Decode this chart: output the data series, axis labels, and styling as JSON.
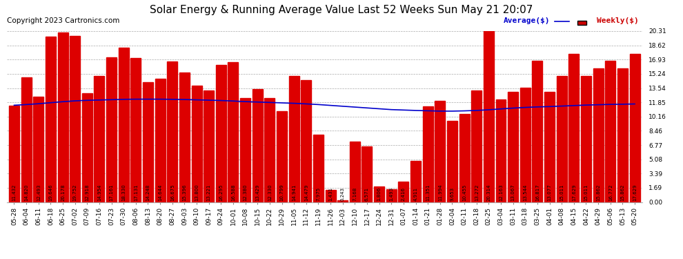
{
  "title": "Solar Energy & Running Average Value Last 52 Weeks Sun May 21 20:07",
  "copyright": "Copyright 2023 Cartronics.com",
  "bar_color": "#dd0000",
  "avg_line_color": "#0000cc",
  "weekly_label_color": "#cc0000",
  "avg_label_color": "#0000cc",
  "background_color": "#ffffff",
  "grid_color": "#aaaaaa",
  "categories": [
    "05-28",
    "06-04",
    "06-11",
    "06-18",
    "06-25",
    "07-02",
    "07-09",
    "07-16",
    "07-23",
    "07-30",
    "08-06",
    "08-13",
    "08-20",
    "08-27",
    "09-03",
    "09-10",
    "09-17",
    "09-24",
    "10-01",
    "10-08",
    "10-15",
    "10-22",
    "10-29",
    "11-05",
    "11-12",
    "11-19",
    "11-26",
    "12-03",
    "12-10",
    "12-17",
    "12-24",
    "12-31",
    "01-07",
    "01-14",
    "01-21",
    "01-28",
    "02-04",
    "02-11",
    "02-18",
    "02-25",
    "03-04",
    "03-11",
    "03-18",
    "03-25",
    "04-01",
    "04-08",
    "04-15",
    "04-22",
    "04-29",
    "05-06",
    "05-13",
    "05-20"
  ],
  "weekly_values": [
    11.432,
    14.82,
    12.493,
    19.646,
    20.178,
    19.752,
    12.918,
    14.954,
    17.161,
    18.33,
    17.131,
    14.248,
    14.644,
    16.675,
    15.396,
    13.8,
    13.221,
    16.295,
    16.588,
    12.38,
    13.429,
    12.33,
    10.799,
    14.941,
    14.479,
    7.975,
    1.431,
    0.243,
    7.168,
    6.571,
    1.806,
    1.493,
    2.416,
    4.911,
    11.351,
    11.994,
    9.653,
    10.455,
    13.272,
    20.314,
    12.163,
    13.067,
    13.544,
    16.817,
    13.077,
    15.011,
    17.629,
    15.011,
    15.862,
    16.772,
    15.862,
    17.629
  ],
  "avg_values": [
    11.5,
    11.58,
    11.68,
    11.8,
    11.92,
    12.02,
    12.08,
    12.12,
    12.16,
    12.2,
    12.22,
    12.22,
    12.22,
    12.2,
    12.18,
    12.14,
    12.1,
    12.06,
    12.0,
    11.93,
    11.88,
    11.83,
    11.78,
    11.73,
    11.66,
    11.58,
    11.48,
    11.38,
    11.28,
    11.18,
    11.08,
    10.98,
    10.93,
    10.88,
    10.84,
    10.8,
    10.8,
    10.83,
    10.88,
    10.96,
    11.06,
    11.16,
    11.24,
    11.3,
    11.34,
    11.4,
    11.46,
    11.52,
    11.56,
    11.6,
    11.62,
    11.65
  ],
  "ylim": [
    0.0,
    20.31
  ],
  "yticks": [
    0.0,
    1.69,
    3.39,
    5.08,
    6.77,
    8.46,
    10.16,
    11.85,
    13.54,
    15.24,
    16.93,
    18.62,
    20.31
  ],
  "title_fontsize": 11,
  "copyright_fontsize": 7.5,
  "tick_fontsize": 6.5,
  "value_fontsize": 5.0,
  "bar_width": 0.85
}
